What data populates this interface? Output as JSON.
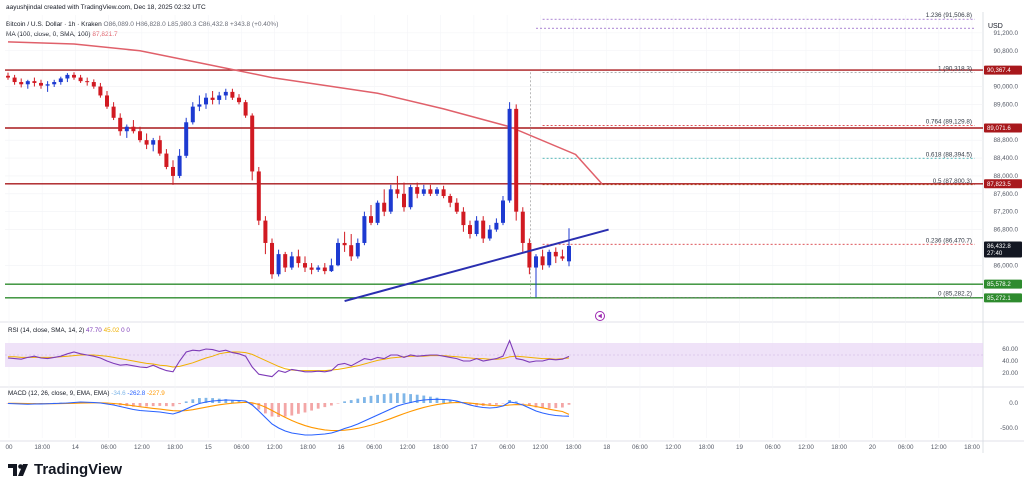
{
  "header": {
    "author_line": "aayushjindal created with TradingView.com, Dec 18, 2025 02:32 UTC",
    "symbol_line": "Bitcoin / U.S. Dollar · 1h · Kraken",
    "ohlc": "O86,089.0 H86,828.0 L85,980.3 C86,432.8 +343.8 (+0.40%)",
    "ma_label": "MA (100, close, 0, SMA, 100)",
    "ma_value": "87,821.7"
  },
  "currency": "USD",
  "brand": "TradingView",
  "colors": {
    "up": "#1d3ad1",
    "down": "#d11a22",
    "ma": "#e0606a",
    "resistance": "#a8181c",
    "support": "#2e8b2e",
    "trendline": "#2a2fb0",
    "rsi_line": "#7e3bb8",
    "rsi_band": "#e9d8f6",
    "macd_line": "#2962ff",
    "signal_line": "#ff9800",
    "hist_pos": "#7fb6e8",
    "hist_neg": "#f3a6a6"
  },
  "chart_data": {
    "type": "candlestick",
    "ylim": [
      85000,
      91600
    ],
    "y_ticks": [
      91200,
      90800,
      90000,
      89600,
      88800,
      88400,
      88000,
      87600,
      87200,
      86800,
      86000
    ],
    "y_tick_labels": [
      "91,200.0",
      "90,800.0",
      "90,000.0",
      "89,600.0",
      "88,800.0",
      "88,400.0",
      "88,000.0",
      "87,600.0",
      "87,200.0",
      "86,800.0",
      "86,000.0"
    ],
    "x_tick_labels": [
      "00",
      "18:00",
      "14",
      "06:00",
      "12:00",
      "18:00",
      "15",
      "06:00",
      "12:00",
      "18:00",
      "16",
      "06:00",
      "12:00",
      "18:00",
      "17",
      "06:00",
      "12:00",
      "18:00",
      "18",
      "06:00",
      "12:00",
      "18:00",
      "19",
      "06:00",
      "12:00",
      "18:00",
      "20",
      "06:00",
      "12:00",
      "18:00"
    ],
    "candles": [
      [
        90240,
        90310,
        90150,
        90200
      ],
      [
        90200,
        90260,
        90040,
        90100
      ],
      [
        90100,
        90180,
        89980,
        90050
      ],
      [
        90050,
        90150,
        89950,
        90120
      ],
      [
        90120,
        90200,
        90000,
        90080
      ],
      [
        90080,
        90150,
        89950,
        90020
      ],
      [
        90020,
        90120,
        89880,
        90050
      ],
      [
        90050,
        90150,
        89990,
        90100
      ],
      [
        90100,
        90220,
        90040,
        90180
      ],
      [
        90180,
        90300,
        90100,
        90260
      ],
      [
        90260,
        90320,
        90150,
        90200
      ],
      [
        90200,
        90260,
        90080,
        90120
      ],
      [
        90120,
        90200,
        90020,
        90100
      ],
      [
        90100,
        90160,
        89950,
        90000
      ],
      [
        90000,
        90080,
        89750,
        89800
      ],
      [
        89800,
        89900,
        89500,
        89550
      ],
      [
        89550,
        89650,
        89250,
        89300
      ],
      [
        89300,
        89400,
        88900,
        89000
      ],
      [
        89000,
        89150,
        88850,
        89100
      ],
      [
        89100,
        89250,
        88950,
        89000
      ],
      [
        89000,
        89100,
        88750,
        88800
      ],
      [
        88800,
        88950,
        88600,
        88700
      ],
      [
        88700,
        88850,
        88550,
        88800
      ],
      [
        88800,
        88900,
        88450,
        88500
      ],
      [
        88500,
        88600,
        88150,
        88200
      ],
      [
        88200,
        88350,
        87800,
        88000
      ],
      [
        88000,
        88600,
        87950,
        88450
      ],
      [
        88450,
        89300,
        88400,
        89200
      ],
      [
        89200,
        89650,
        89150,
        89550
      ],
      [
        89550,
        89800,
        89450,
        89600
      ],
      [
        89600,
        89850,
        89500,
        89750
      ],
      [
        89750,
        89900,
        89600,
        89700
      ],
      [
        89700,
        89880,
        89600,
        89800
      ],
      [
        89800,
        89950,
        89700,
        89880
      ],
      [
        89880,
        89950,
        89700,
        89750
      ],
      [
        89750,
        89830,
        89600,
        89650
      ],
      [
        89650,
        89700,
        89300,
        89350
      ],
      [
        89350,
        89400,
        87900,
        88100
      ],
      [
        88100,
        88200,
        86900,
        87000
      ],
      [
        87000,
        87100,
        86250,
        86500
      ],
      [
        86500,
        86600,
        85700,
        85800
      ],
      [
        85800,
        86350,
        85750,
        86250
      ],
      [
        86250,
        86300,
        85850,
        85950
      ],
      [
        85950,
        86300,
        85900,
        86200
      ],
      [
        86200,
        86350,
        85950,
        86050
      ],
      [
        86050,
        86200,
        85850,
        85950
      ],
      [
        85950,
        86050,
        85800,
        85900
      ],
      [
        85900,
        86000,
        85850,
        85950
      ],
      [
        85950,
        86050,
        85800,
        85870
      ],
      [
        85870,
        86150,
        85850,
        86000
      ],
      [
        86000,
        86600,
        85980,
        86500
      ],
      [
        86500,
        86750,
        86300,
        86450
      ],
      [
        86450,
        86700,
        86100,
        86200
      ],
      [
        86200,
        86600,
        86150,
        86500
      ],
      [
        86500,
        87200,
        86450,
        87100
      ],
      [
        87100,
        87350,
        86900,
        86950
      ],
      [
        86950,
        87450,
        86900,
        87400
      ],
      [
        87400,
        87700,
        87100,
        87200
      ],
      [
        87200,
        87800,
        87150,
        87700
      ],
      [
        87700,
        88000,
        87500,
        87600
      ],
      [
        87600,
        87850,
        87200,
        87300
      ],
      [
        87300,
        87800,
        87250,
        87750
      ],
      [
        87750,
        87850,
        87500,
        87600
      ],
      [
        87600,
        87800,
        87550,
        87700
      ],
      [
        87700,
        87800,
        87550,
        87600
      ],
      [
        87600,
        87750,
        87550,
        87700
      ],
      [
        87700,
        87780,
        87500,
        87550
      ],
      [
        87550,
        87600,
        87300,
        87400
      ],
      [
        87400,
        87500,
        87150,
        87200
      ],
      [
        87200,
        87300,
        86750,
        86900
      ],
      [
        86900,
        87000,
        86600,
        86700
      ],
      [
        86700,
        87100,
        86650,
        87000
      ],
      [
        87000,
        87100,
        86500,
        86600
      ],
      [
        86600,
        86900,
        86550,
        86800
      ],
      [
        86800,
        87050,
        86750,
        86950
      ],
      [
        86950,
        87550,
        86900,
        87450
      ],
      [
        87450,
        89650,
        87400,
        89500
      ],
      [
        89500,
        89600,
        87000,
        87200
      ],
      [
        87200,
        87300,
        86300,
        86500
      ],
      [
        86500,
        86600,
        85800,
        85950
      ],
      [
        85950,
        86250,
        85282,
        86200
      ],
      [
        86200,
        86350,
        85900,
        86000
      ],
      [
        86000,
        86350,
        85950,
        86300
      ],
      [
        86300,
        86400,
        86050,
        86200
      ],
      [
        86200,
        86350,
        86100,
        86150
      ],
      [
        86089,
        86828,
        85980,
        86433
      ]
    ],
    "ma100": [
      [
        0,
        91000
      ],
      [
        10,
        90950
      ],
      [
        20,
        90800
      ],
      [
        30,
        90500
      ],
      [
        40,
        90200
      ],
      [
        50,
        89980
      ],
      [
        56,
        89850
      ],
      [
        66,
        89500
      ],
      [
        76,
        89100
      ],
      [
        86,
        88480
      ],
      [
        90,
        87821.7
      ]
    ],
    "horizontal_levels": [
      {
        "kind": "resistance",
        "price": 90367.4,
        "label": "90,367.4"
      },
      {
        "kind": "resistance",
        "price": 89071.6,
        "label": "89,071.6"
      },
      {
        "kind": "resistance",
        "price": 87823.5,
        "label": "87,823.5"
      },
      {
        "kind": "support",
        "price": 85578.2,
        "label": "85,578.2"
      },
      {
        "kind": "support",
        "price": 85272.1,
        "label": "85,272.1"
      }
    ],
    "fib_levels": [
      {
        "ratio": "1.236",
        "price": 91506.8,
        "label": "1.236 (91,506.8)"
      },
      {
        "ratio": "1",
        "price": 90318.3,
        "label": "1 (90,318.3)"
      },
      {
        "ratio": "0.764",
        "price": 89129.8,
        "label": "0.764 (89,129.8)"
      },
      {
        "ratio": "0.618",
        "price": 88394.5,
        "label": "0.618 (88,394.5)"
      },
      {
        "ratio": "0.5",
        "price": 87800.3,
        "label": "0.5 (87,800.3)"
      },
      {
        "ratio": "0.236",
        "price": 86470.7,
        "label": "0.236 (86,470.7)"
      },
      {
        "ratio": "0",
        "price": 85282.2,
        "label": "0 (85,282.2)"
      }
    ],
    "trendline": {
      "start": [
        51,
        85200
      ],
      "end": [
        91,
        86800
      ]
    },
    "last_price": {
      "price": 86432.8,
      "label": "86,432.8",
      "countdown": "27:40"
    },
    "rsi": {
      "label": "RSI (14, close, SMA, 14, 2)",
      "value": "47.70",
      "ma_value": "45.02",
      "extra": "0 0",
      "ylim": [
        0,
        100
      ],
      "ticks": [
        60,
        40,
        20
      ],
      "tick_labels": [
        "60.00",
        "40.00",
        "20.00"
      ],
      "band": [
        30,
        70
      ],
      "values": [
        45,
        44,
        43,
        46,
        48,
        45,
        44,
        46,
        48,
        52,
        55,
        52,
        50,
        48,
        45,
        40,
        36,
        33,
        34,
        32,
        30,
        29,
        33,
        28,
        24,
        22,
        40,
        55,
        58,
        57,
        60,
        59,
        56,
        58,
        54,
        52,
        48,
        30,
        18,
        16,
        14,
        24,
        21,
        26,
        24,
        22,
        22,
        23,
        22,
        24,
        34,
        36,
        32,
        38,
        44,
        42,
        46,
        44,
        50,
        50,
        46,
        50,
        48,
        49,
        50,
        50,
        48,
        46,
        44,
        40,
        40,
        44,
        40,
        42,
        44,
        48,
        74,
        44,
        42,
        38,
        40,
        40,
        43,
        42,
        43,
        47.7
      ],
      "ma": [
        47,
        47,
        46,
        46,
        46,
        46,
        46,
        46,
        47,
        48,
        49,
        50,
        50,
        50,
        49,
        48,
        46,
        44,
        42,
        40,
        38,
        36,
        35,
        33,
        32,
        30,
        31,
        34,
        37,
        41,
        45,
        48,
        52,
        54,
        55,
        55,
        54,
        51,
        46,
        41,
        36,
        31,
        27,
        25,
        24,
        24,
        24,
        24,
        24,
        25,
        26,
        28,
        30,
        32,
        35,
        38,
        41,
        43,
        45,
        46,
        47,
        48,
        48,
        48,
        49,
        49,
        49,
        48,
        47,
        46,
        45,
        44,
        44,
        43,
        43,
        44,
        47,
        48,
        47,
        46,
        45,
        44,
        44,
        43,
        44,
        45.02
      ]
    },
    "macd": {
      "label": "MACD (12, 26, close, 9, EMA, EMA)",
      "hist_value": "-34.6",
      "macd_value": "-262.8",
      "signal_value": "-227.9",
      "ylim": [
        -700,
        300
      ],
      "ticks": [
        0,
        -500
      ],
      "tick_labels": [
        "0.0",
        "-500.0"
      ],
      "macd_values": [
        -10,
        -15,
        -20,
        -25,
        -20,
        -18,
        -15,
        -10,
        -5,
        0,
        10,
        20,
        15,
        10,
        0,
        -20,
        -40,
        -70,
        -100,
        -130,
        -150,
        -160,
        -170,
        -180,
        -200,
        -220,
        -180,
        -120,
        -60,
        -10,
        20,
        40,
        50,
        60,
        55,
        50,
        40,
        -40,
        -160,
        -290,
        -420,
        -500,
        -560,
        -600,
        -620,
        -640,
        -640,
        -630,
        -620,
        -600,
        -560,
        -510,
        -470,
        -420,
        -360,
        -300,
        -240,
        -180,
        -120,
        -60,
        -20,
        10,
        40,
        60,
        70,
        75,
        70,
        60,
        40,
        0,
        -40,
        -70,
        -90,
        -100,
        -90,
        -60,
        20,
        0,
        -40,
        -100,
        -160,
        -200,
        -230,
        -250,
        -260,
        -262.8
      ],
      "signal_values": [
        -5,
        -7,
        -9,
        -12,
        -13,
        -14,
        -14,
        -13,
        -12,
        -10,
        -6,
        -1,
        2,
        4,
        3,
        -2,
        -10,
        -22,
        -38,
        -56,
        -75,
        -92,
        -108,
        -122,
        -138,
        -154,
        -159,
        -152,
        -134,
        -109,
        -83,
        -58,
        -37,
        -18,
        -4,
        7,
        14,
        3,
        -30,
        -82,
        -150,
        -220,
        -288,
        -350,
        -404,
        -451,
        -489,
        -517,
        -538,
        -550,
        -552,
        -543,
        -528,
        -507,
        -478,
        -443,
        -403,
        -358,
        -311,
        -261,
        -213,
        -168,
        -126,
        -89,
        -57,
        -31,
        -11,
        3,
        10,
        8,
        -2,
        -16,
        -31,
        -45,
        -54,
        -55,
        -40,
        -32,
        -34,
        -47,
        -70,
        -96,
        -123,
        -148,
        -170,
        -227.9
      ]
    }
  }
}
